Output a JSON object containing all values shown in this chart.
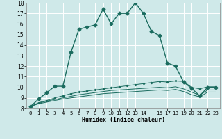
{
  "xlabel": "Humidex (Indice chaleur)",
  "xlim": [
    -0.5,
    23.5
  ],
  "ylim": [
    8,
    18
  ],
  "yticks": [
    8,
    9,
    10,
    11,
    12,
    13,
    14,
    15,
    16,
    17,
    18
  ],
  "xticks": [
    0,
    1,
    2,
    3,
    4,
    5,
    6,
    7,
    8,
    9,
    10,
    11,
    12,
    13,
    14,
    16,
    17,
    18,
    19,
    20,
    21,
    22,
    23
  ],
  "bg_color": "#cfe9e9",
  "grid_color": "#ffffff",
  "line_color": "#1a6b5e",
  "line1_x": [
    0,
    1,
    2,
    3,
    4,
    5,
    6,
    7,
    8,
    9,
    10,
    11,
    12,
    13,
    14,
    15,
    16,
    17,
    18,
    19,
    20,
    21,
    22,
    23
  ],
  "line1_y": [
    8.2,
    8.9,
    9.5,
    10.1,
    10.1,
    13.3,
    15.5,
    15.7,
    15.9,
    17.4,
    16.0,
    17.0,
    17.0,
    18.0,
    17.0,
    15.3,
    14.9,
    12.3,
    12.0,
    10.5,
    9.9,
    9.2,
    10.0,
    10.0
  ],
  "line2_x": [
    0,
    1,
    2,
    3,
    4,
    5,
    6,
    7,
    8,
    9,
    10,
    11,
    12,
    13,
    14,
    15,
    16,
    17,
    18,
    19,
    20,
    21,
    22,
    23
  ],
  "line2_y": [
    8.2,
    8.55,
    8.75,
    9.0,
    9.2,
    9.4,
    9.55,
    9.65,
    9.75,
    9.85,
    9.95,
    10.05,
    10.15,
    10.25,
    10.35,
    10.45,
    10.55,
    10.5,
    10.6,
    10.55,
    10.0,
    9.85,
    10.05,
    10.05
  ],
  "line3_x": [
    0,
    1,
    2,
    3,
    4,
    5,
    6,
    7,
    8,
    9,
    10,
    11,
    12,
    13,
    14,
    15,
    16,
    17,
    18,
    19,
    20,
    21,
    22,
    23
  ],
  "line3_y": [
    8.2,
    8.5,
    8.7,
    8.85,
    9.0,
    9.15,
    9.3,
    9.4,
    9.5,
    9.6,
    9.7,
    9.75,
    9.8,
    9.85,
    9.9,
    9.95,
    10.0,
    9.95,
    10.05,
    9.85,
    9.55,
    9.25,
    9.75,
    9.75
  ],
  "line4_x": [
    0,
    1,
    2,
    3,
    4,
    5,
    6,
    7,
    8,
    9,
    10,
    11,
    12,
    13,
    14,
    15,
    16,
    17,
    18,
    19,
    20,
    21,
    22,
    23
  ],
  "line4_y": [
    8.2,
    8.45,
    8.6,
    8.75,
    8.9,
    9.0,
    9.1,
    9.2,
    9.3,
    9.4,
    9.45,
    9.5,
    9.55,
    9.6,
    9.65,
    9.7,
    9.75,
    9.7,
    9.8,
    9.6,
    9.3,
    9.1,
    9.55,
    9.55
  ]
}
